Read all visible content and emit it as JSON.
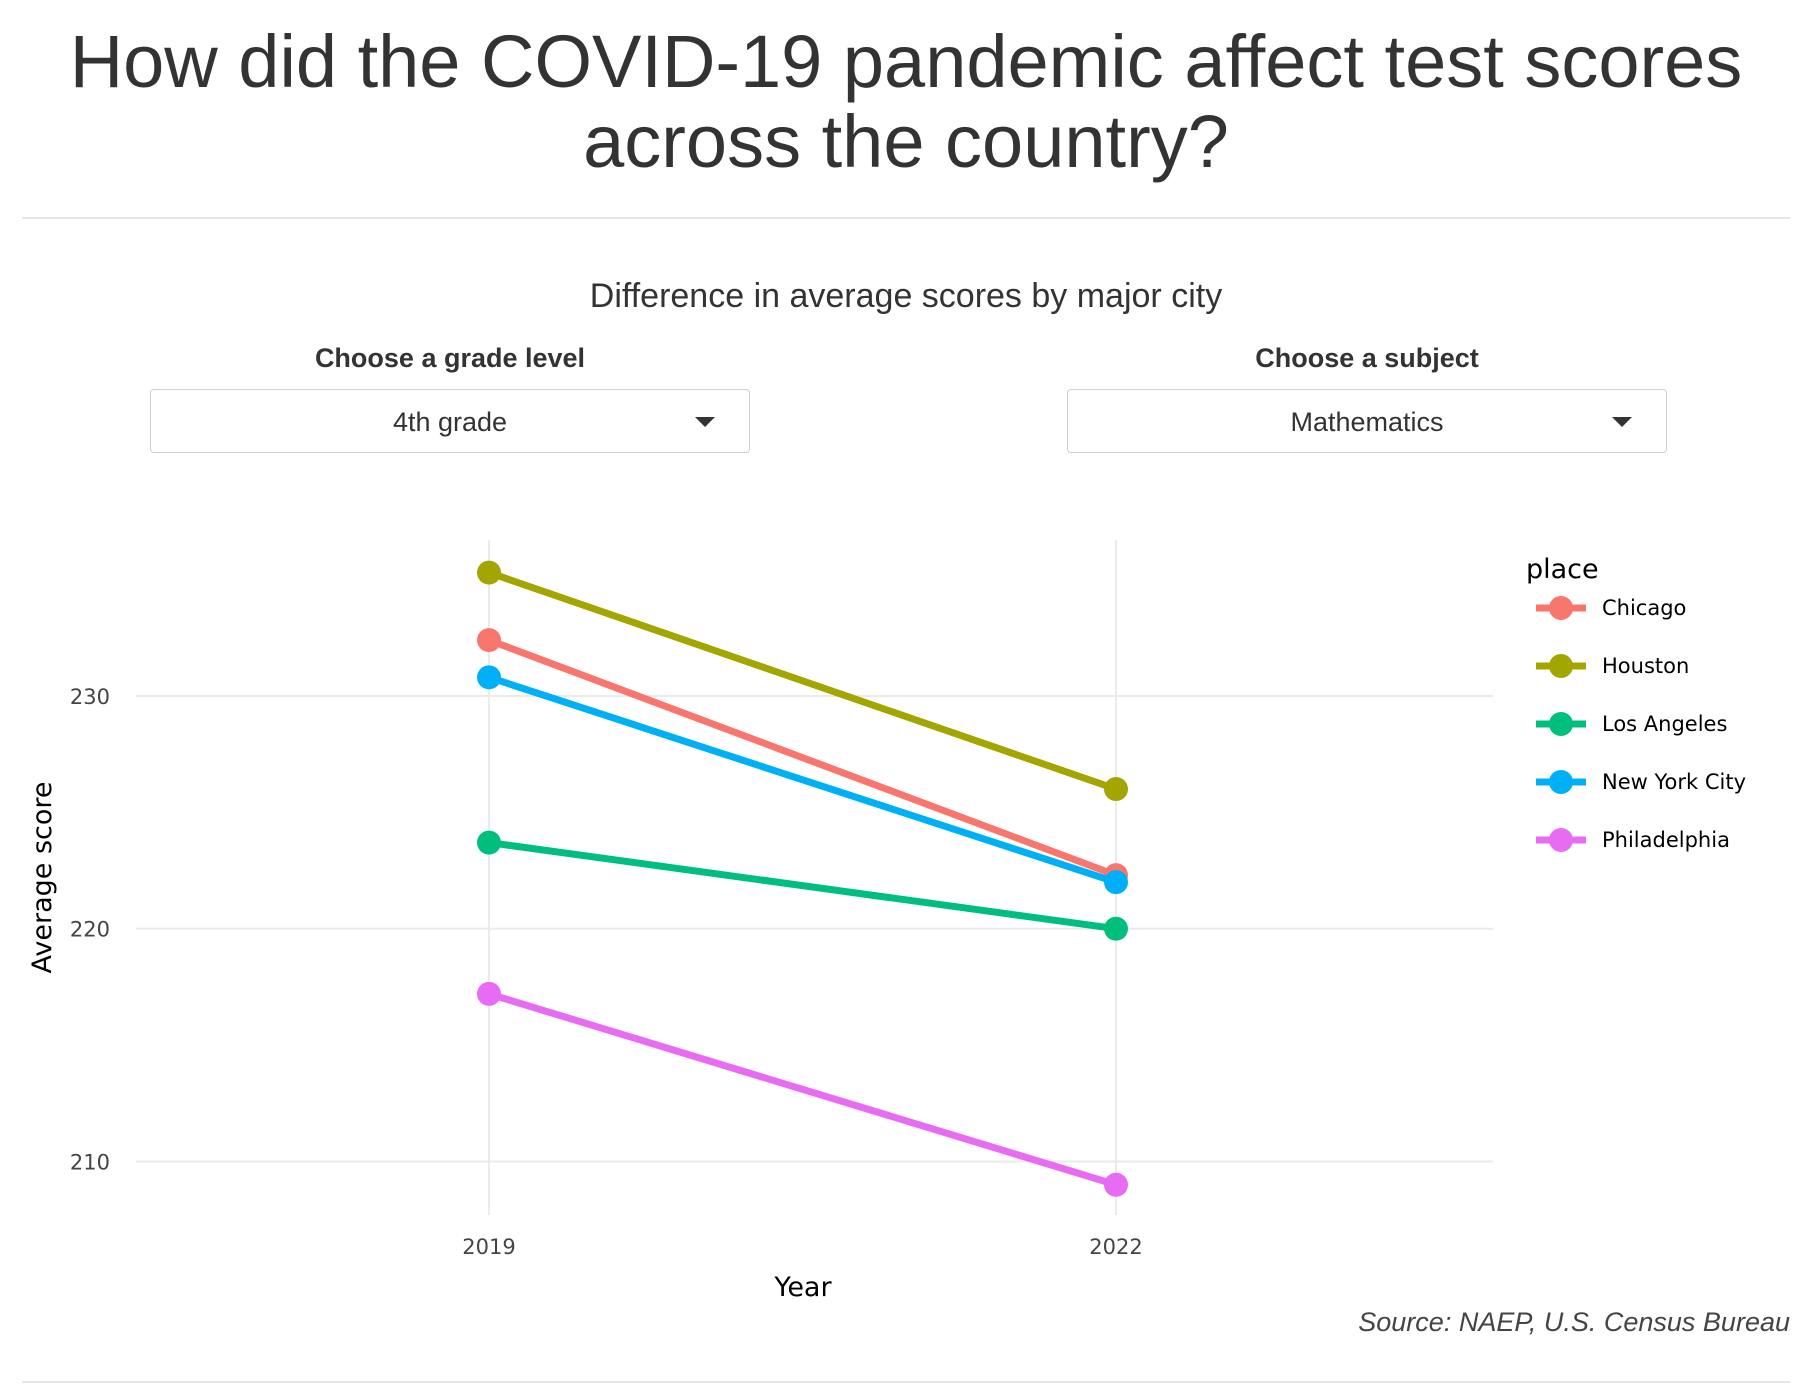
{
  "page": {
    "title": "How did the COVID-19 pandemic affect test scores across the country?",
    "source": "Source: NAEP, U.S. Census Bureau"
  },
  "controls": {
    "grade": {
      "label": "Choose a grade level",
      "value": "4th grade"
    },
    "subject": {
      "label": "Choose a subject",
      "value": "Mathematics"
    }
  },
  "chart_data": {
    "type": "line",
    "title": "Difference in average scores by major city",
    "xlabel": "Year",
    "ylabel": "Average score",
    "x": [
      "2019",
      "2022"
    ],
    "ylim": [
      207.7,
      236.7
    ],
    "yticks": [
      210,
      220,
      230
    ],
    "grid": true,
    "legend": {
      "title": "place",
      "position": "right"
    },
    "series": [
      {
        "name": "Chicago",
        "color": "#F8766D",
        "values": [
          232.4,
          222.3
        ]
      },
      {
        "name": "Houston",
        "color": "#A3A500",
        "values": [
          235.3,
          226.0
        ]
      },
      {
        "name": "Los Angeles",
        "color": "#00BF7D",
        "values": [
          223.7,
          220.0
        ]
      },
      {
        "name": "New York City",
        "color": "#00B0F6",
        "values": [
          230.8,
          222.0
        ]
      },
      {
        "name": "Philadelphia",
        "color": "#E76BF3",
        "values": [
          217.2,
          209.0
        ]
      }
    ]
  }
}
